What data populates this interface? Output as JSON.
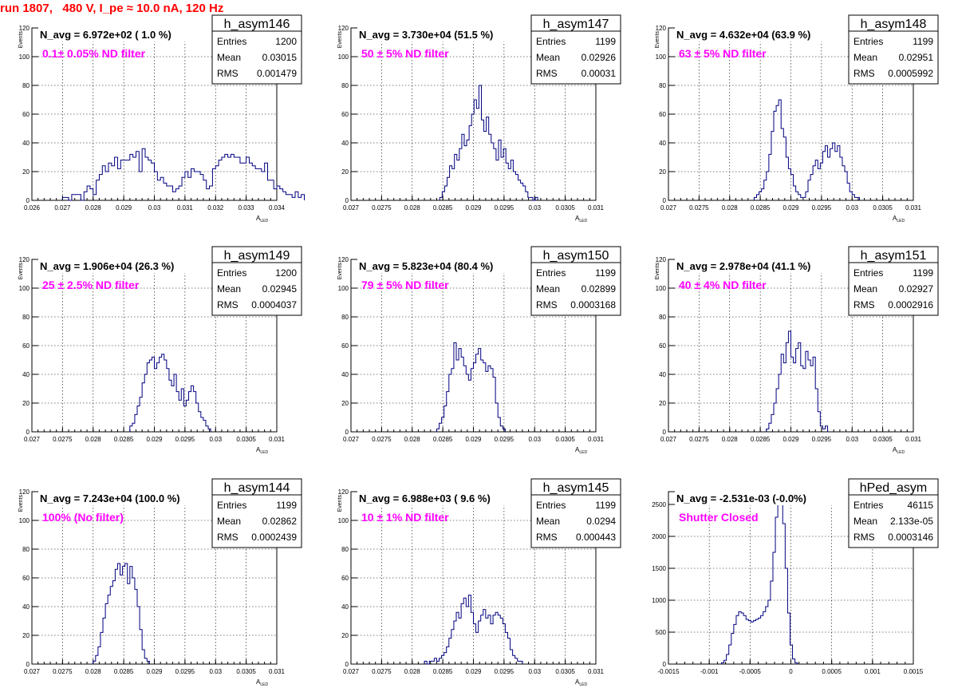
{
  "title": "run 1807,   480 V, I_pe ≈ 10.0 nA, 120 Hz",
  "colors": {
    "title": "#ff0000",
    "annotation": "#ff00ff",
    "line": "#000080",
    "grid": "#000000"
  },
  "chart_data": [
    {
      "type": "histogram",
      "name": "h_asym146",
      "navg": "N_avg = 6.972e+02 ( 1.0 %)",
      "filter": "0.1± 0.05% ND filter",
      "stats": {
        "entries": "1200",
        "mean": "0.03015",
        "rms": "0.001479"
      },
      "ylabel": "Events",
      "xlabel": "A_LED",
      "xlim": [
        0.026,
        0.034
      ],
      "ylim": [
        0,
        120
      ],
      "xticks": [
        "0.026",
        "0.027",
        "0.028",
        "0.029",
        "0.03",
        "0.031",
        "0.032",
        "0.033",
        "0.034"
      ],
      "yticks": [
        "0",
        "20",
        "40",
        "60",
        "80",
        "100",
        "120"
      ],
      "bins": {
        "start": 0.027,
        "width": 0.0001,
        "values": [
          2,
          2,
          0,
          4,
          4,
          4,
          0,
          6,
          10,
          8,
          4,
          14,
          18,
          24,
          20,
          26,
          24,
          30,
          22,
          28,
          28,
          28,
          32,
          30,
          34,
          20,
          36,
          30,
          28,
          26,
          20,
          14,
          16,
          12,
          10,
          10,
          6,
          8,
          10,
          16,
          20,
          16,
          22,
          20,
          20,
          18,
          14,
          8,
          10,
          22,
          24,
          28,
          30,
          32,
          30,
          32,
          30,
          30,
          26,
          26,
          30,
          26,
          24,
          22,
          22,
          20,
          26,
          14,
          14,
          8,
          10,
          8,
          6,
          4,
          4,
          2,
          6,
          2,
          4
        ]
      }
    },
    {
      "type": "histogram",
      "name": "h_asym147",
      "navg": "N_avg = 3.730e+04 (51.5 %)",
      "filter": "50 ± 5% ND filter",
      "stats": {
        "entries": "1199",
        "mean": "0.02926",
        "rms": "0.00031"
      },
      "ylabel": "Events",
      "xlabel": "A_LED",
      "xlim": [
        0.027,
        0.031
      ],
      "ylim": [
        0,
        120
      ],
      "xticks": [
        "0.027",
        "0.0275",
        "0.028",
        "0.0285",
        "0.029",
        "0.0295",
        "0.03",
        "0.0305",
        "0.031"
      ],
      "yticks": [
        "0",
        "20",
        "40",
        "60",
        "80",
        "100",
        "120"
      ],
      "bins": {
        "start": 0.02845,
        "width": 4e-05,
        "values": [
          2,
          6,
          10,
          16,
          24,
          22,
          32,
          28,
          36,
          46,
          38,
          42,
          52,
          60,
          70,
          64,
          80,
          56,
          48,
          58,
          46,
          40,
          36,
          28,
          42,
          30,
          36,
          26,
          22,
          28,
          20,
          18,
          14,
          12,
          10,
          6,
          2,
          2,
          0,
          2
        ]
      }
    },
    {
      "type": "histogram",
      "name": "h_asym148",
      "navg": "N_avg = 4.632e+04 (63.9 %)",
      "filter": "63 ± 5% ND filter",
      "stats": {
        "entries": "1199",
        "mean": "0.02951",
        "rms": "0.0005992"
      },
      "ylabel": "Events",
      "xlabel": "A_LED",
      "xlim": [
        0.027,
        0.031
      ],
      "ylim": [
        0,
        120
      ],
      "xticks": [
        "0.027",
        "0.0275",
        "0.028",
        "0.0285",
        "0.029",
        "0.0295",
        "0.03",
        "0.0305",
        "0.031"
      ],
      "yticks": [
        "0",
        "20",
        "40",
        "60",
        "80",
        "100",
        "120"
      ],
      "bins": {
        "start": 0.0284,
        "width": 4e-05,
        "values": [
          2,
          4,
          6,
          8,
          14,
          20,
          32,
          48,
          62,
          66,
          70,
          50,
          44,
          30,
          22,
          18,
          10,
          6,
          4,
          2,
          2,
          6,
          14,
          18,
          24,
          28,
          22,
          26,
          34,
          38,
          30,
          36,
          40,
          34,
          38,
          30,
          24,
          20,
          12,
          6,
          4,
          2,
          2
        ]
      }
    },
    {
      "type": "histogram",
      "name": "h_asym149",
      "navg": "N_avg = 1.906e+04 (26.3 %)",
      "filter": "25 ± 2.5% ND filter",
      "stats": {
        "entries": "1200",
        "mean": "0.02945",
        "rms": "0.0004037"
      },
      "ylabel": "Events",
      "xlabel": "A_LED",
      "xlim": [
        0.027,
        0.031
      ],
      "ylim": [
        0,
        120
      ],
      "xticks": [
        "0.027",
        "0.0275",
        "0.028",
        "0.0285",
        "0.029",
        "0.0295",
        "0.03",
        "0.0305",
        "0.031"
      ],
      "yticks": [
        "0",
        "20",
        "40",
        "60",
        "80",
        "100",
        "120"
      ],
      "bins": {
        "start": 0.0286,
        "width": 4e-05,
        "values": [
          4,
          6,
          12,
          18,
          24,
          34,
          40,
          48,
          50,
          52,
          44,
          48,
          52,
          54,
          50,
          44,
          36,
          32,
          40,
          28,
          22,
          30,
          18,
          22,
          28,
          32,
          28,
          20,
          14,
          10,
          8,
          4,
          2
        ]
      }
    },
    {
      "type": "histogram",
      "name": "h_asym150",
      "navg": "N_avg = 5.823e+04 (80.4 %)",
      "filter": "79 ± 5% ND filter",
      "stats": {
        "entries": "1199",
        "mean": "0.02899",
        "rms": "0.0003168"
      },
      "ylabel": "Events",
      "xlabel": "A_LED",
      "xlim": [
        0.027,
        0.031
      ],
      "ylim": [
        0,
        120
      ],
      "xticks": [
        "0.027",
        "0.0275",
        "0.028",
        "0.0285",
        "0.029",
        "0.0295",
        "0.03",
        "0.0305",
        "0.031"
      ],
      "yticks": [
        "0",
        "20",
        "40",
        "60",
        "80",
        "100",
        "120"
      ],
      "bins": {
        "start": 0.0284,
        "width": 4e-05,
        "values": [
          2,
          6,
          10,
          18,
          28,
          40,
          44,
          62,
          50,
          58,
          52,
          46,
          40,
          36,
          44,
          48,
          54,
          58,
          50,
          48,
          42,
          46,
          44,
          38,
          20,
          10,
          4,
          2
        ]
      }
    },
    {
      "type": "histogram",
      "name": "h_asym151",
      "navg": "N_avg = 2.978e+04 (41.1 %)",
      "filter": "40 ± 4% ND filter",
      "stats": {
        "entries": "1199",
        "mean": "0.02927",
        "rms": "0.0002916"
      },
      "ylabel": "Events",
      "xlabel": "A_LED",
      "xlim": [
        0.027,
        0.031
      ],
      "ylim": [
        0,
        120
      ],
      "xticks": [
        "0.027",
        "0.0275",
        "0.028",
        "0.0285",
        "0.029",
        "0.0295",
        "0.03",
        "0.0305",
        "0.031"
      ],
      "yticks": [
        "0",
        "20",
        "40",
        "60",
        "80",
        "100",
        "120"
      ],
      "bins": {
        "start": 0.0286,
        "width": 4e-05,
        "values": [
          2,
          6,
          12,
          20,
          30,
          40,
          54,
          48,
          62,
          70,
          52,
          48,
          58,
          62,
          46,
          44,
          56,
          50,
          46,
          52,
          30,
          14,
          4,
          2,
          4
        ]
      }
    },
    {
      "type": "histogram",
      "name": "h_asym144",
      "navg": "N_avg = 7.243e+04 (100.0 %)",
      "filter": "100% (No filter)",
      "stats": {
        "entries": "1199",
        "mean": "0.02862",
        "rms": "0.0002439"
      },
      "ylabel": "Events",
      "xlabel": "A_LED",
      "xlim": [
        0.027,
        0.031
      ],
      "ylim": [
        0,
        120
      ],
      "xticks": [
        "0.027",
        "0.0275",
        "0.028",
        "0.0285",
        "0.029",
        "0.0295",
        "0.03",
        "0.0305",
        "0.031"
      ],
      "yticks": [
        "0",
        "20",
        "40",
        "60",
        "80",
        "100",
        "120"
      ],
      "bins": {
        "start": 0.028,
        "width": 4e-05,
        "values": [
          2,
          6,
          12,
          22,
          32,
          42,
          48,
          54,
          58,
          66,
          70,
          62,
          68,
          70,
          56,
          68,
          60,
          52,
          40,
          24,
          10,
          4,
          2
        ]
      }
    },
    {
      "type": "histogram",
      "name": "h_asym145",
      "navg": "N_avg = 6.988e+03 ( 9.6 %)",
      "filter": "10 ± 1% ND filter",
      "stats": {
        "entries": "1199",
        "mean": "0.0294",
        "rms": "0.000443"
      },
      "ylabel": "Events",
      "xlabel": "A_LED",
      "xlim": [
        0.027,
        0.031
      ],
      "ylim": [
        0,
        120
      ],
      "xticks": [
        "0.027",
        "0.0275",
        "0.028",
        "0.0285",
        "0.029",
        "0.0295",
        "0.03",
        "0.0305",
        "0.031"
      ],
      "yticks": [
        "0",
        "20",
        "40",
        "60",
        "80",
        "100",
        "120"
      ],
      "bins": {
        "start": 0.0282,
        "width": 4e-05,
        "values": [
          2,
          0,
          2,
          2,
          4,
          2,
          4,
          6,
          8,
          12,
          18,
          24,
          30,
          36,
          32,
          42,
          46,
          40,
          48,
          36,
          28,
          22,
          30,
          34,
          38,
          32,
          34,
          28,
          34,
          36,
          34,
          32,
          28,
          22,
          18,
          10,
          6,
          4,
          2,
          2
        ]
      }
    },
    {
      "type": "histogram",
      "name": "hPed_asym",
      "navg": "N_avg = -2.531e-03 (-0.0%)",
      "filter": "Shutter Closed",
      "stats": {
        "entries": "46115",
        "mean": "2.133e-05",
        "rms": "0.0003146"
      },
      "ylabel": "",
      "xlabel": "",
      "xlim": [
        -0.0015,
        0.0015
      ],
      "ylim": [
        0,
        2700
      ],
      "xticks": [
        "-0.0015",
        "-0.001",
        "-0.0005",
        "0",
        "0.0005",
        "0.001",
        "0.0015"
      ],
      "yticks": [
        "0",
        "500",
        "1000",
        "1500",
        "2000",
        "2500"
      ],
      "bins": {
        "start": -0.00085,
        "width": 3e-05,
        "values": [
          20,
          60,
          150,
          300,
          480,
          620,
          760,
          820,
          800,
          760,
          700,
          680,
          660,
          680,
          700,
          720,
          760,
          820,
          900,
          1000,
          1300,
          1750,
          2300,
          2550,
          2500,
          2200,
          1500,
          800,
          300,
          80,
          20
        ]
      }
    }
  ]
}
